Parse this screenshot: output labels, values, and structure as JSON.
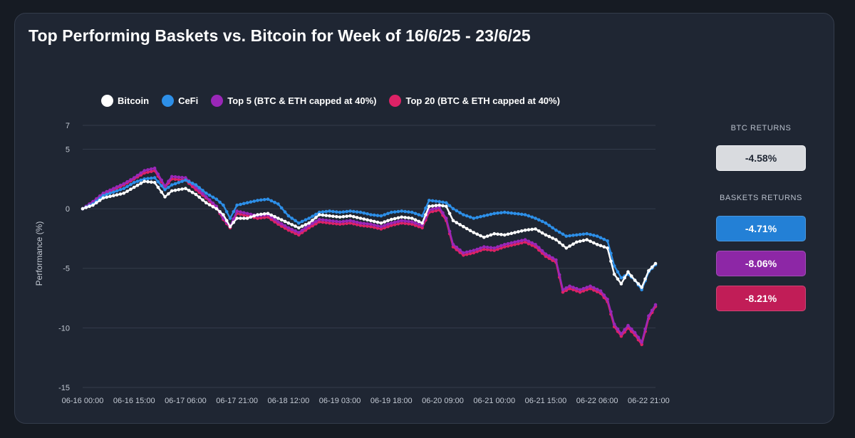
{
  "title": "Top Performing Baskets vs. Bitcoin for Week of 16/6/25 - 23/6/25",
  "sidebar": {
    "btc_label": "BTC RETURNS",
    "btc_return": {
      "value": "-4.58%",
      "bg": "#d9dbdf",
      "fg": "#1f2633"
    },
    "baskets_label": "BASKETS RETURNS",
    "baskets": [
      {
        "value": "-4.71%",
        "bg": "#2380d6",
        "fg": "#ffffff"
      },
      {
        "value": "-8.06%",
        "bg": "#8d27a6",
        "fg": "#ffffff"
      },
      {
        "value": "-8.21%",
        "bg": "#c11d57",
        "fg": "#ffffff"
      }
    ]
  },
  "chart_data": {
    "type": "line",
    "ylabel": "Performance (%)",
    "ylim": [
      -15,
      7
    ],
    "yticks": [
      7,
      5,
      0,
      -5,
      -10,
      -15
    ],
    "x_ticks": [
      "06-16 00:00",
      "06-16 15:00",
      "06-17 06:00",
      "06-17 21:00",
      "06-18 12:00",
      "06-19 03:00",
      "06-19 18:00",
      "06-20 09:00",
      "06-21 00:00",
      "06-21 15:00",
      "06-22 06:00",
      "06-22 21:00"
    ],
    "x_tick_hours": [
      0,
      15,
      30,
      45,
      60,
      75,
      90,
      105,
      120,
      135,
      150,
      165
    ],
    "x_range_hours": [
      0,
      167
    ],
    "grid": "horizontal",
    "legend_position": "top",
    "series": [
      {
        "name": "Bitcoin",
        "color": "#ffffff",
        "points": [
          [
            0,
            0
          ],
          [
            3,
            0.3
          ],
          [
            6,
            0.9
          ],
          [
            9,
            1.1
          ],
          [
            12,
            1.3
          ],
          [
            15,
            1.8
          ],
          [
            18,
            2.3
          ],
          [
            21,
            2.2
          ],
          [
            24,
            1.0
          ],
          [
            26,
            1.5
          ],
          [
            30,
            1.7
          ],
          [
            33,
            1.2
          ],
          [
            36,
            0.5
          ],
          [
            39,
            0.0
          ],
          [
            41,
            -0.5
          ],
          [
            43,
            -1.5
          ],
          [
            45,
            -0.8
          ],
          [
            48,
            -0.8
          ],
          [
            51,
            -0.5
          ],
          [
            54,
            -0.4
          ],
          [
            57,
            -0.8
          ],
          [
            60,
            -1.2
          ],
          [
            63,
            -1.6
          ],
          [
            66,
            -1.2
          ],
          [
            69,
            -0.5
          ],
          [
            72,
            -0.6
          ],
          [
            75,
            -0.7
          ],
          [
            78,
            -0.6
          ],
          [
            81,
            -0.8
          ],
          [
            84,
            -1.0
          ],
          [
            87,
            -1.2
          ],
          [
            90,
            -0.9
          ],
          [
            93,
            -0.7
          ],
          [
            96,
            -0.8
          ],
          [
            99,
            -1.2
          ],
          [
            101,
            0.2
          ],
          [
            104,
            0.3
          ],
          [
            106,
            0.2
          ],
          [
            108,
            -1.0
          ],
          [
            111,
            -1.5
          ],
          [
            114,
            -2.0
          ],
          [
            117,
            -2.4
          ],
          [
            120,
            -2.1
          ],
          [
            123,
            -2.2
          ],
          [
            126,
            -2.0
          ],
          [
            129,
            -1.8
          ],
          [
            132,
            -1.7
          ],
          [
            135,
            -2.2
          ],
          [
            138,
            -2.6
          ],
          [
            141,
            -3.3
          ],
          [
            144,
            -2.8
          ],
          [
            147,
            -2.6
          ],
          [
            150,
            -3.0
          ],
          [
            153,
            -3.3
          ],
          [
            155,
            -5.5
          ],
          [
            157,
            -6.3
          ],
          [
            159,
            -5.3
          ],
          [
            161,
            -6.0
          ],
          [
            163,
            -6.6
          ],
          [
            165,
            -5.2
          ],
          [
            167,
            -4.6
          ]
        ]
      },
      {
        "name": "CeFi",
        "color": "#2d8fe8",
        "points": [
          [
            0,
            0
          ],
          [
            3,
            0.4
          ],
          [
            6,
            1.1
          ],
          [
            9,
            1.4
          ],
          [
            12,
            1.7
          ],
          [
            15,
            2.2
          ],
          [
            18,
            2.5
          ],
          [
            21,
            2.6
          ],
          [
            24,
            1.6
          ],
          [
            26,
            2.0
          ],
          [
            30,
            2.4
          ],
          [
            33,
            2.0
          ],
          [
            36,
            1.3
          ],
          [
            39,
            0.8
          ],
          [
            41,
            0.3
          ],
          [
            43,
            -0.8
          ],
          [
            45,
            0.3
          ],
          [
            48,
            0.5
          ],
          [
            51,
            0.7
          ],
          [
            54,
            0.8
          ],
          [
            57,
            0.4
          ],
          [
            60,
            -0.6
          ],
          [
            63,
            -1.2
          ],
          [
            66,
            -0.8
          ],
          [
            69,
            -0.3
          ],
          [
            72,
            -0.2
          ],
          [
            75,
            -0.3
          ],
          [
            78,
            -0.2
          ],
          [
            81,
            -0.3
          ],
          [
            84,
            -0.5
          ],
          [
            87,
            -0.6
          ],
          [
            90,
            -0.3
          ],
          [
            93,
            -0.2
          ],
          [
            96,
            -0.3
          ],
          [
            99,
            -0.6
          ],
          [
            101,
            0.7
          ],
          [
            104,
            0.6
          ],
          [
            106,
            0.5
          ],
          [
            108,
            0.0
          ],
          [
            111,
            -0.5
          ],
          [
            114,
            -0.8
          ],
          [
            117,
            -0.6
          ],
          [
            120,
            -0.4
          ],
          [
            123,
            -0.3
          ],
          [
            126,
            -0.4
          ],
          [
            129,
            -0.5
          ],
          [
            132,
            -0.8
          ],
          [
            135,
            -1.2
          ],
          [
            138,
            -1.8
          ],
          [
            141,
            -2.3
          ],
          [
            144,
            -2.2
          ],
          [
            147,
            -2.1
          ],
          [
            150,
            -2.3
          ],
          [
            153,
            -2.7
          ],
          [
            155,
            -4.8
          ],
          [
            157,
            -5.8
          ],
          [
            159,
            -5.5
          ],
          [
            161,
            -6.0
          ],
          [
            163,
            -6.8
          ],
          [
            165,
            -5.3
          ],
          [
            167,
            -4.7
          ]
        ]
      },
      {
        "name": "Top 5 (BTC & ETH capped at 40%)",
        "color": "#9a27b8",
        "points": [
          [
            0,
            0
          ],
          [
            3,
            0.6
          ],
          [
            6,
            1.3
          ],
          [
            9,
            1.7
          ],
          [
            12,
            2.1
          ],
          [
            15,
            2.6
          ],
          [
            18,
            3.2
          ],
          [
            21,
            3.4
          ],
          [
            24,
            1.9
          ],
          [
            26,
            2.7
          ],
          [
            30,
            2.6
          ],
          [
            33,
            1.8
          ],
          [
            36,
            1.0
          ],
          [
            39,
            0.2
          ],
          [
            41,
            -0.8
          ],
          [
            43,
            -1.5
          ],
          [
            45,
            -0.2
          ],
          [
            48,
            -0.4
          ],
          [
            51,
            -0.6
          ],
          [
            54,
            -0.5
          ],
          [
            57,
            -1.1
          ],
          [
            60,
            -1.6
          ],
          [
            63,
            -2.0
          ],
          [
            66,
            -1.4
          ],
          [
            69,
            -0.9
          ],
          [
            72,
            -1.0
          ],
          [
            75,
            -1.1
          ],
          [
            78,
            -1.0
          ],
          [
            81,
            -1.2
          ],
          [
            84,
            -1.3
          ],
          [
            87,
            -1.5
          ],
          [
            90,
            -1.2
          ],
          [
            93,
            -1.0
          ],
          [
            96,
            -1.1
          ],
          [
            99,
            -1.4
          ],
          [
            101,
            -0.1
          ],
          [
            104,
            0.1
          ],
          [
            106,
            -0.8
          ],
          [
            108,
            -3.0
          ],
          [
            111,
            -3.7
          ],
          [
            114,
            -3.5
          ],
          [
            117,
            -3.2
          ],
          [
            120,
            -3.3
          ],
          [
            123,
            -3.0
          ],
          [
            126,
            -2.8
          ],
          [
            129,
            -2.6
          ],
          [
            132,
            -3.0
          ],
          [
            135,
            -3.8
          ],
          [
            138,
            -4.3
          ],
          [
            140,
            -6.8
          ],
          [
            142,
            -6.5
          ],
          [
            145,
            -6.8
          ],
          [
            148,
            -6.5
          ],
          [
            151,
            -6.9
          ],
          [
            153,
            -7.6
          ],
          [
            155,
            -9.7
          ],
          [
            157,
            -10.5
          ],
          [
            159,
            -9.8
          ],
          [
            161,
            -10.4
          ],
          [
            163,
            -11.2
          ],
          [
            165,
            -9.0
          ],
          [
            167,
            -8.06
          ]
        ]
      },
      {
        "name": "Top 20 (BTC & ETH capped at 40%)",
        "color": "#dd2266",
        "points": [
          [
            0,
            0
          ],
          [
            3,
            0.5
          ],
          [
            6,
            1.2
          ],
          [
            9,
            1.6
          ],
          [
            12,
            2.0
          ],
          [
            15,
            2.5
          ],
          [
            18,
            3.0
          ],
          [
            21,
            3.2
          ],
          [
            24,
            1.8
          ],
          [
            26,
            2.5
          ],
          [
            30,
            2.4
          ],
          [
            33,
            1.6
          ],
          [
            36,
            0.9
          ],
          [
            39,
            0.1
          ],
          [
            41,
            -0.9
          ],
          [
            43,
            -1.6
          ],
          [
            45,
            -0.4
          ],
          [
            48,
            -0.6
          ],
          [
            51,
            -0.8
          ],
          [
            54,
            -0.7
          ],
          [
            57,
            -1.3
          ],
          [
            60,
            -1.8
          ],
          [
            63,
            -2.2
          ],
          [
            66,
            -1.6
          ],
          [
            69,
            -1.1
          ],
          [
            72,
            -1.2
          ],
          [
            75,
            -1.3
          ],
          [
            78,
            -1.2
          ],
          [
            81,
            -1.4
          ],
          [
            84,
            -1.5
          ],
          [
            87,
            -1.7
          ],
          [
            90,
            -1.4
          ],
          [
            93,
            -1.2
          ],
          [
            96,
            -1.3
          ],
          [
            99,
            -1.6
          ],
          [
            101,
            -0.3
          ],
          [
            104,
            -0.1
          ],
          [
            106,
            -1.0
          ],
          [
            108,
            -3.2
          ],
          [
            111,
            -3.9
          ],
          [
            114,
            -3.7
          ],
          [
            117,
            -3.4
          ],
          [
            120,
            -3.5
          ],
          [
            123,
            -3.2
          ],
          [
            126,
            -3.0
          ],
          [
            129,
            -2.8
          ],
          [
            132,
            -3.2
          ],
          [
            135,
            -4.0
          ],
          [
            138,
            -4.5
          ],
          [
            140,
            -7.0
          ],
          [
            142,
            -6.7
          ],
          [
            145,
            -7.0
          ],
          [
            148,
            -6.7
          ],
          [
            151,
            -7.1
          ],
          [
            153,
            -7.8
          ],
          [
            155,
            -9.9
          ],
          [
            157,
            -10.7
          ],
          [
            159,
            -10.0
          ],
          [
            161,
            -10.6
          ],
          [
            163,
            -11.4
          ],
          [
            165,
            -9.2
          ],
          [
            167,
            -8.21
          ]
        ]
      }
    ]
  }
}
